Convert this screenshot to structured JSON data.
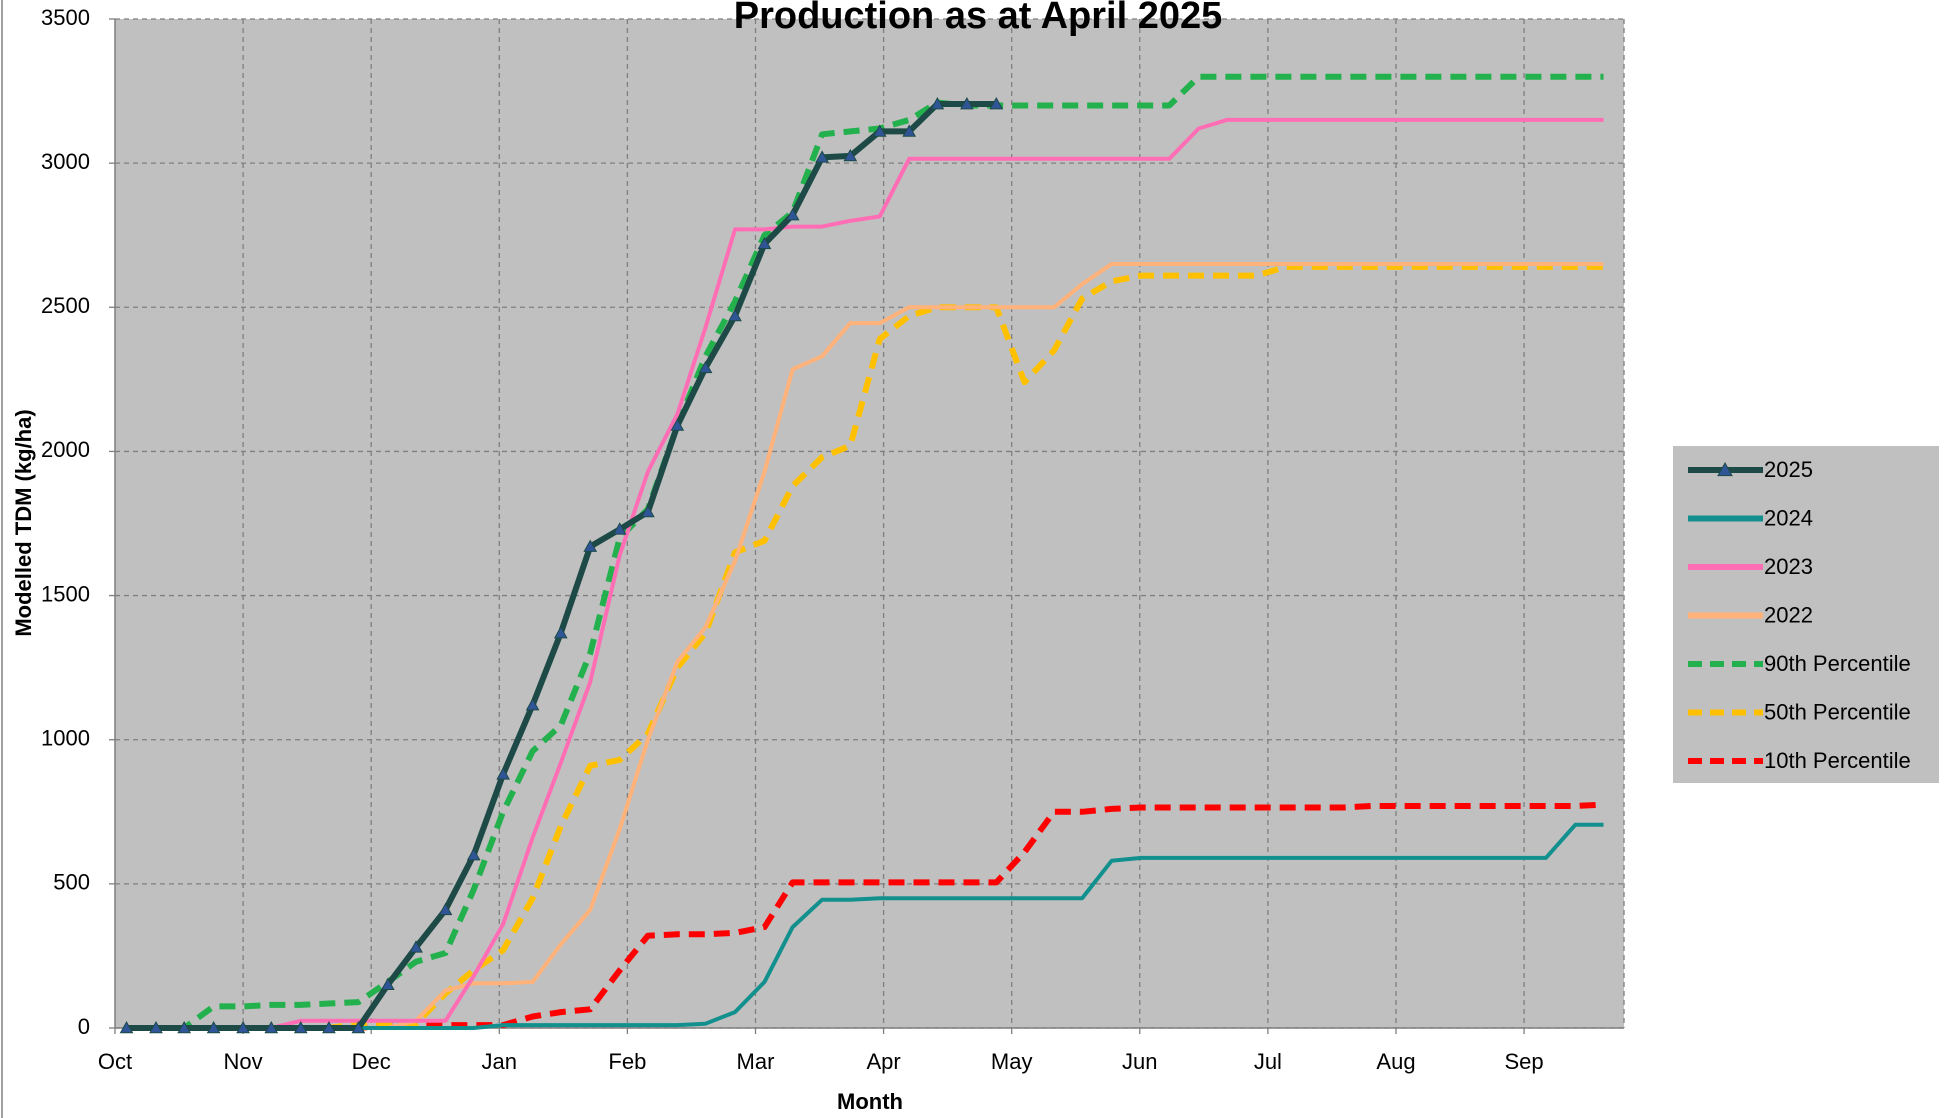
{
  "chart_data": {
    "type": "line",
    "title": "Production as at April 2025",
    "x_label": "Month",
    "y_label": "Modelled TDM (kg/ha)",
    "xlim": [
      0,
      11.78
    ],
    "xticks": [
      {
        "value": 0,
        "label": "Oct"
      },
      {
        "value": 1,
        "label": "Nov"
      },
      {
        "value": 2,
        "label": "Dec"
      },
      {
        "value": 3,
        "label": "Jan"
      },
      {
        "value": 4,
        "label": "Feb"
      },
      {
        "value": 5,
        "label": "Mar"
      },
      {
        "value": 6,
        "label": "Apr"
      },
      {
        "value": 7,
        "label": "May"
      },
      {
        "value": 8,
        "label": "Jun"
      },
      {
        "value": 9,
        "label": "Jul"
      },
      {
        "value": 10,
        "label": "Aug"
      },
      {
        "value": 11,
        "label": "Sep"
      }
    ],
    "ylim": [
      0,
      3500
    ],
    "yticks": [
      0,
      500,
      1000,
      1500,
      2000,
      2500,
      3000,
      3500
    ],
    "grid": true,
    "legend": "right",
    "x": [
      0.09,
      0.32,
      0.54,
      0.77,
      1.0,
      1.22,
      1.45,
      1.67,
      1.9,
      2.13,
      2.35,
      2.58,
      2.8,
      3.03,
      3.26,
      3.48,
      3.71,
      3.94,
      4.16,
      4.39,
      4.61,
      4.84,
      5.07,
      5.29,
      5.52,
      5.74,
      5.97,
      6.2,
      6.42,
      6.65,
      6.88,
      7.1,
      7.33,
      7.55,
      7.78,
      8.01,
      8.23,
      8.46,
      8.68,
      8.91,
      9.14,
      9.36,
      9.59,
      9.81,
      10.04,
      10.27,
      10.49,
      10.72,
      10.95,
      11.17,
      11.4,
      11.62
    ],
    "series": [
      {
        "name": "2025",
        "color": "#1d4a47",
        "dashed": false,
        "marker": "triangle",
        "marker_color": "#2f5597",
        "values": [
          0,
          0,
          0,
          0,
          0,
          0,
          0,
          0,
          0,
          150,
          280,
          410,
          600,
          880,
          1120,
          1370,
          1670,
          1730,
          1790,
          2090,
          2290,
          2470,
          2720,
          2820,
          3020,
          3025,
          3110,
          3110,
          3205,
          3205,
          3205,
          null,
          null,
          null,
          null,
          null,
          null,
          null,
          null,
          null,
          null,
          null,
          null,
          null,
          null,
          null,
          null,
          null,
          null,
          null,
          null,
          null
        ]
      },
      {
        "name": "2024",
        "color": "#12908e",
        "dashed": false,
        "values": [
          0,
          0,
          0,
          0,
          0,
          0,
          0,
          0,
          0,
          0,
          0,
          0,
          0,
          10,
          10,
          10,
          10,
          10,
          10,
          10,
          15,
          55,
          160,
          350,
          445,
          445,
          450,
          450,
          450,
          450,
          450,
          450,
          450,
          450,
          580,
          590,
          590,
          590,
          590,
          590,
          590,
          590,
          590,
          590,
          590,
          590,
          590,
          590,
          590,
          590,
          705,
          705
        ]
      },
      {
        "name": "2023",
        "color": "#ff6eb4",
        "dashed": false,
        "values": [
          0,
          0,
          0,
          0,
          0,
          0,
          25,
          25,
          25,
          25,
          25,
          25,
          180,
          360,
          660,
          920,
          1200,
          1640,
          1930,
          2130,
          2430,
          2770,
          2770,
          2780,
          2780,
          2800,
          2815,
          3015,
          3015,
          3015,
          3015,
          3015,
          3015,
          3015,
          3015,
          3015,
          3015,
          3120,
          3150,
          3150,
          3150,
          3150,
          3150,
          3150,
          3150,
          3150,
          3150,
          3150,
          3150,
          3150,
          3150,
          3150
        ]
      },
      {
        "name": "2022",
        "color": "#ffb27a",
        "dashed": false,
        "values": [
          0,
          0,
          0,
          0,
          0,
          0,
          0,
          0,
          0,
          0,
          25,
          130,
          155,
          155,
          160,
          290,
          410,
          690,
          1000,
          1270,
          1390,
          1620,
          1930,
          2285,
          2330,
          2445,
          2445,
          2500,
          2500,
          2500,
          2500,
          2500,
          2500,
          2580,
          2650,
          2650,
          2650,
          2650,
          2650,
          2650,
          2650,
          2650,
          2650,
          2650,
          2650,
          2650,
          2650,
          2650,
          2650,
          2650,
          2650,
          2650
        ]
      },
      {
        "name": "90th Percentile",
        "color": "#22b14c",
        "dashed": true,
        "values": [
          0,
          0,
          0,
          75,
          75,
          80,
          80,
          85,
          90,
          160,
          230,
          260,
          480,
          750,
          960,
          1050,
          1300,
          1700,
          1800,
          2090,
          2330,
          2520,
          2750,
          2830,
          3100,
          3110,
          3120,
          3150,
          3210,
          3200,
          3200,
          3200,
          3200,
          3200,
          3200,
          3200,
          3200,
          3300,
          3300,
          3300,
          3300,
          3300,
          3300,
          3300,
          3300,
          3300,
          3300,
          3300,
          3300,
          3300,
          3300,
          3300
        ]
      },
      {
        "name": "50th Percentile",
        "color": "#ffc000",
        "dashed": true,
        "values": [
          0,
          0,
          0,
          0,
          0,
          0,
          0,
          0,
          15,
          15,
          15,
          120,
          200,
          270,
          450,
          700,
          910,
          930,
          1020,
          1250,
          1370,
          1650,
          1690,
          1880,
          1980,
          2020,
          2390,
          2470,
          2500,
          2500,
          2500,
          2240,
          2350,
          2530,
          2590,
          2610,
          2610,
          2610,
          2610,
          2610,
          2640,
          2640,
          2640,
          2640,
          2640,
          2640,
          2640,
          2640,
          2640,
          2640,
          2640,
          2640
        ]
      },
      {
        "name": "10th Percentile",
        "color": "#ff0000",
        "dashed": true,
        "values": [
          0,
          0,
          0,
          0,
          0,
          0,
          0,
          0,
          0,
          10,
          10,
          10,
          10,
          10,
          40,
          55,
          65,
          200,
          320,
          325,
          325,
          330,
          350,
          505,
          505,
          505,
          505,
          505,
          505,
          505,
          505,
          610,
          750,
          750,
          760,
          765,
          765,
          765,
          765,
          765,
          765,
          765,
          765,
          770,
          770,
          770,
          770,
          770,
          770,
          770,
          770,
          775
        ]
      }
    ]
  }
}
